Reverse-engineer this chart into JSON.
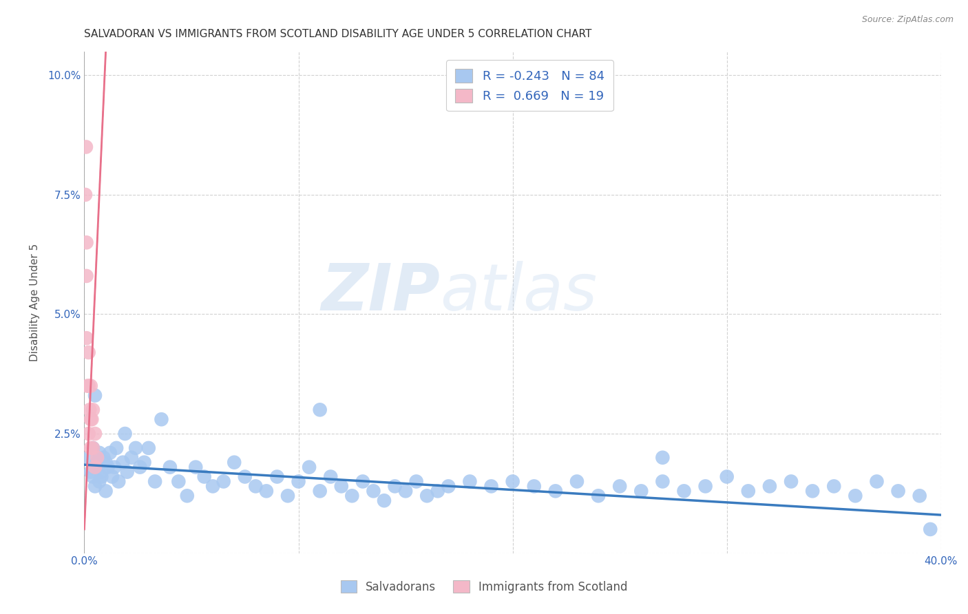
{
  "title": "SALVADORAN VS IMMIGRANTS FROM SCOTLAND DISABILITY AGE UNDER 5 CORRELATION CHART",
  "source": "Source: ZipAtlas.com",
  "ylabel": "Disability Age Under 5",
  "xlim": [
    0.0,
    0.4
  ],
  "ylim": [
    0.0,
    0.105
  ],
  "xticks": [
    0.0,
    0.1,
    0.2,
    0.3,
    0.4
  ],
  "xticklabels": [
    "0.0%",
    "",
    "",
    "",
    "40.0%"
  ],
  "yticks": [
    0.0,
    0.025,
    0.05,
    0.075,
    0.1
  ],
  "yticklabels": [
    "",
    "2.5%",
    "5.0%",
    "7.5%",
    "10.0%"
  ],
  "blue_R": -0.243,
  "blue_N": 84,
  "pink_R": 0.669,
  "pink_N": 19,
  "blue_color": "#a8c8f0",
  "pink_color": "#f4b8c8",
  "blue_line_color": "#3a7bbf",
  "pink_line_color": "#e8708a",
  "legend_label_blue": "Salvadorans",
  "legend_label_pink": "Immigrants from Scotland",
  "watermark_zip": "ZIP",
  "watermark_atlas": "atlas",
  "title_fontsize": 11,
  "axis_tick_fontsize": 11,
  "ylabel_fontsize": 11,
  "blue_x": [
    0.002,
    0.003,
    0.004,
    0.004,
    0.005,
    0.005,
    0.006,
    0.007,
    0.007,
    0.008,
    0.008,
    0.009,
    0.01,
    0.01,
    0.011,
    0.012,
    0.013,
    0.014,
    0.015,
    0.016,
    0.018,
    0.019,
    0.02,
    0.022,
    0.024,
    0.026,
    0.028,
    0.03,
    0.033,
    0.036,
    0.04,
    0.044,
    0.048,
    0.052,
    0.056,
    0.06,
    0.065,
    0.07,
    0.075,
    0.08,
    0.085,
    0.09,
    0.095,
    0.1,
    0.105,
    0.11,
    0.115,
    0.12,
    0.125,
    0.13,
    0.135,
    0.14,
    0.145,
    0.15,
    0.155,
    0.16,
    0.165,
    0.17,
    0.18,
    0.19,
    0.2,
    0.21,
    0.22,
    0.23,
    0.24,
    0.25,
    0.26,
    0.27,
    0.28,
    0.29,
    0.3,
    0.31,
    0.32,
    0.33,
    0.34,
    0.35,
    0.36,
    0.37,
    0.38,
    0.39,
    0.005,
    0.11,
    0.27,
    0.395
  ],
  "blue_y": [
    0.02,
    0.017,
    0.016,
    0.022,
    0.018,
    0.014,
    0.019,
    0.015,
    0.021,
    0.017,
    0.016,
    0.02,
    0.019,
    0.013,
    0.018,
    0.021,
    0.016,
    0.018,
    0.022,
    0.015,
    0.019,
    0.025,
    0.017,
    0.02,
    0.022,
    0.018,
    0.019,
    0.022,
    0.015,
    0.028,
    0.018,
    0.015,
    0.012,
    0.018,
    0.016,
    0.014,
    0.015,
    0.019,
    0.016,
    0.014,
    0.013,
    0.016,
    0.012,
    0.015,
    0.018,
    0.013,
    0.016,
    0.014,
    0.012,
    0.015,
    0.013,
    0.011,
    0.014,
    0.013,
    0.015,
    0.012,
    0.013,
    0.014,
    0.015,
    0.014,
    0.015,
    0.014,
    0.013,
    0.015,
    0.012,
    0.014,
    0.013,
    0.015,
    0.013,
    0.014,
    0.016,
    0.013,
    0.014,
    0.015,
    0.013,
    0.014,
    0.012,
    0.015,
    0.013,
    0.012,
    0.033,
    0.03,
    0.02,
    0.005
  ],
  "pink_x": [
    0.0005,
    0.0008,
    0.001,
    0.001,
    0.001,
    0.0015,
    0.002,
    0.002,
    0.002,
    0.0025,
    0.003,
    0.003,
    0.003,
    0.0035,
    0.004,
    0.004,
    0.005,
    0.005,
    0.006
  ],
  "pink_y": [
    0.075,
    0.085,
    0.065,
    0.058,
    0.045,
    0.035,
    0.042,
    0.035,
    0.025,
    0.03,
    0.035,
    0.028,
    0.022,
    0.028,
    0.03,
    0.022,
    0.025,
    0.018,
    0.02
  ],
  "blue_line_x0": 0.0,
  "blue_line_x1": 0.4,
  "blue_line_y0": 0.0185,
  "blue_line_y1": 0.008,
  "pink_line_x0": 0.0,
  "pink_line_x1": 0.006,
  "pink_line_y0": 0.005,
  "pink_line_y1": 0.065
}
